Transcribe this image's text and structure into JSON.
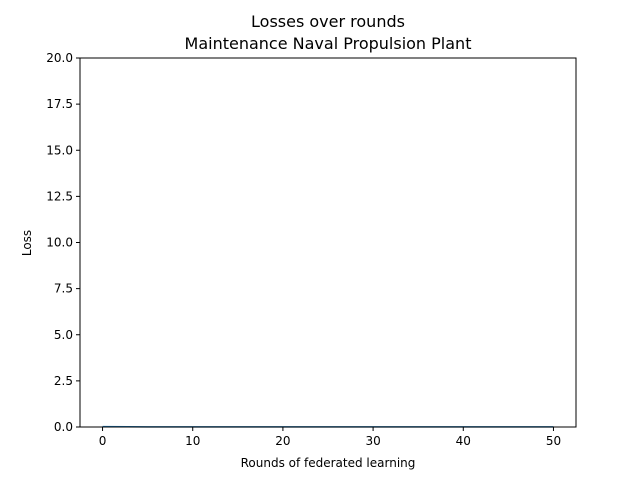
{
  "chart_data": {
    "type": "line",
    "title": "Losses over rounds",
    "subtitle": "Maintenance Naval Propulsion Plant",
    "xlabel": "Rounds of federated learning",
    "ylabel": "Loss",
    "xlim": [
      -2.5,
      52.5
    ],
    "ylim": [
      0,
      20
    ],
    "xticks": [
      0,
      10,
      20,
      30,
      40,
      50
    ],
    "yticks": [
      0.0,
      2.5,
      5.0,
      7.5,
      10.0,
      12.5,
      15.0,
      17.5,
      20.0
    ],
    "ytick_labels": [
      "0.0",
      "2.5",
      "5.0",
      "7.5",
      "10.0",
      "12.5",
      "15.0",
      "17.5",
      "20.0"
    ],
    "grid": false,
    "series": [
      {
        "color": "#1f77b4",
        "x": [
          0,
          5,
          10,
          15,
          20,
          25,
          30,
          35,
          40,
          45,
          50
        ],
        "values": [
          0.02,
          0.01,
          0.01,
          0.01,
          0.01,
          0.01,
          0.01,
          0.01,
          0.01,
          0.01,
          0.01
        ]
      }
    ]
  }
}
